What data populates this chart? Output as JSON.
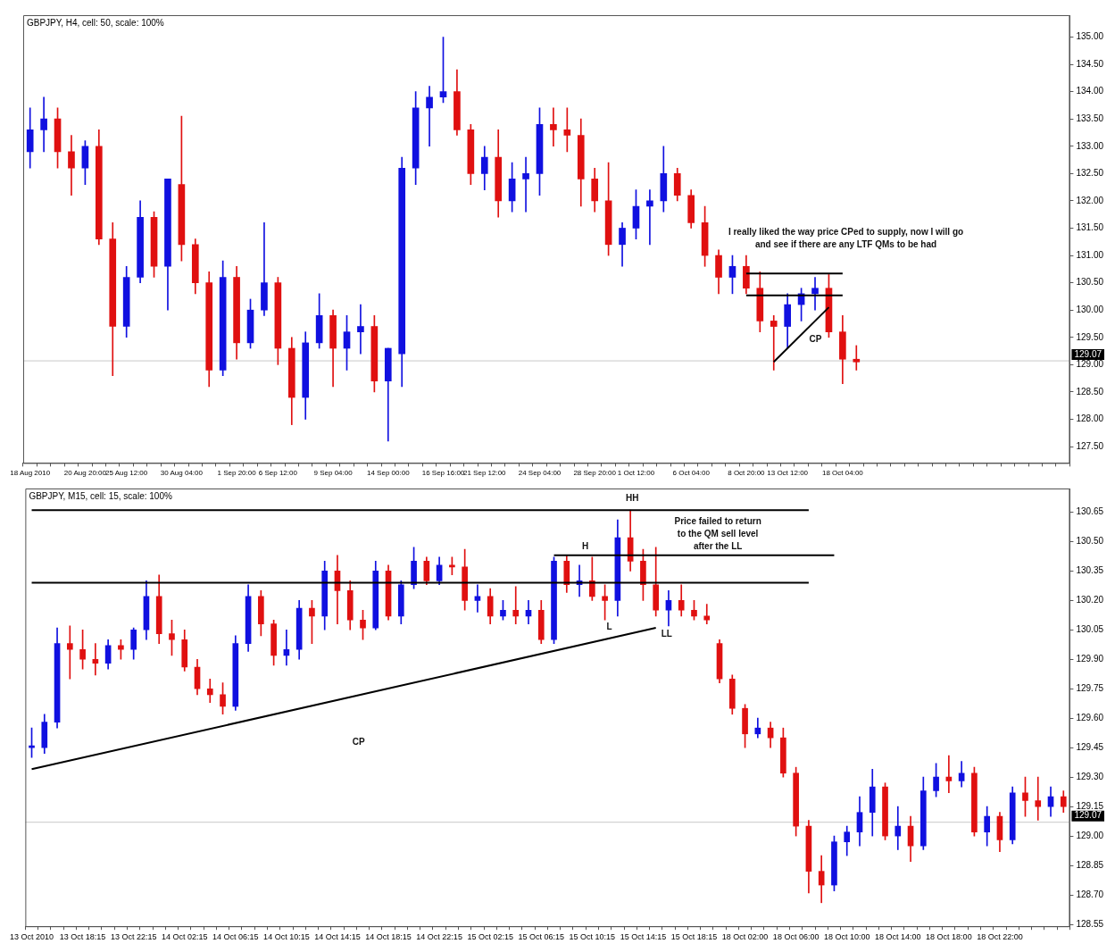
{
  "chart_data": [
    {
      "type": "candlestick",
      "title": "GBPJPY, H4, cell: 50, scale: 100%",
      "categories": [
        "18 Aug 2010",
        null,
        null,
        null,
        "20 Aug 20:00",
        null,
        null,
        "25 Aug 12:00",
        null,
        null,
        null,
        "30 Aug 04:00",
        null,
        null,
        null,
        "1 Sep 20:00",
        null,
        null,
        "6 Sep 12:00",
        null,
        null,
        null,
        "9 Sep 04:00",
        null,
        null,
        null,
        "14 Sep 00:00",
        null,
        null,
        null,
        "16 Sep 16:00",
        null,
        null,
        "21 Sep 12:00",
        null,
        null,
        null,
        "24 Sep 04:00",
        null,
        null,
        null,
        "28 Sep 20:00",
        null,
        null,
        "1 Oct 12:00",
        null,
        null,
        null,
        "6 Oct 04:00",
        null,
        null,
        null,
        "8 Oct 20:00",
        null,
        null,
        "13 Oct 12:00",
        null,
        null,
        null,
        "18 Oct 04:00",
        null,
        null,
        null,
        null,
        null,
        null,
        null,
        null,
        null,
        null,
        null,
        null,
        null,
        null,
        null,
        null
      ],
      "ohlc": [
        [
          132.9,
          133.7,
          132.6,
          133.3
        ],
        [
          133.3,
          133.9,
          132.9,
          133.5
        ],
        [
          133.5,
          133.7,
          132.6,
          132.9
        ],
        [
          132.9,
          133.2,
          132.1,
          132.6
        ],
        [
          132.6,
          133.1,
          132.3,
          133.0
        ],
        [
          133.0,
          133.3,
          131.2,
          131.3
        ],
        [
          131.3,
          131.6,
          128.8,
          129.7
        ],
        [
          129.7,
          130.8,
          129.5,
          130.6
        ],
        [
          130.6,
          132.0,
          130.5,
          131.7
        ],
        [
          131.7,
          131.8,
          130.6,
          130.8
        ],
        [
          130.8,
          132.4,
          130.0,
          132.4
        ],
        [
          132.3,
          133.55,
          130.9,
          131.2
        ],
        [
          131.2,
          131.3,
          130.3,
          130.5
        ],
        [
          130.5,
          130.7,
          128.6,
          128.9
        ],
        [
          128.9,
          130.9,
          128.8,
          130.6
        ],
        [
          130.6,
          130.8,
          129.1,
          129.4
        ],
        [
          129.4,
          130.2,
          129.3,
          130.0
        ],
        [
          130.0,
          131.6,
          129.9,
          130.5
        ],
        [
          130.5,
          130.6,
          129.0,
          129.3
        ],
        [
          129.3,
          129.5,
          127.9,
          128.4
        ],
        [
          128.4,
          129.6,
          128.0,
          129.4
        ],
        [
          129.4,
          130.3,
          129.3,
          129.9
        ],
        [
          129.9,
          130.0,
          128.6,
          129.3
        ],
        [
          129.3,
          129.9,
          128.9,
          129.6
        ],
        [
          129.6,
          130.1,
          129.2,
          129.7
        ],
        [
          129.7,
          129.9,
          128.5,
          128.7
        ],
        [
          128.7,
          129.3,
          127.6,
          129.3
        ],
        [
          129.2,
          132.8,
          128.6,
          132.6
        ],
        [
          132.6,
          134.0,
          132.3,
          133.7
        ],
        [
          133.7,
          134.1,
          133.0,
          133.9
        ],
        [
          133.9,
          135.0,
          133.8,
          134.0
        ],
        [
          134.0,
          134.4,
          133.2,
          133.3
        ],
        [
          133.3,
          133.4,
          132.3,
          132.5
        ],
        [
          132.5,
          133.0,
          132.2,
          132.8
        ],
        [
          132.8,
          133.3,
          131.7,
          132.0
        ],
        [
          132.0,
          132.7,
          131.8,
          132.4
        ],
        [
          132.4,
          132.8,
          131.8,
          132.5
        ],
        [
          132.5,
          133.7,
          132.1,
          133.4
        ],
        [
          133.4,
          133.7,
          133.0,
          133.3
        ],
        [
          133.3,
          133.7,
          132.9,
          133.2
        ],
        [
          133.2,
          133.5,
          131.9,
          132.4
        ],
        [
          132.4,
          132.6,
          131.8,
          132.0
        ],
        [
          132.0,
          132.7,
          131.0,
          131.2
        ],
        [
          131.2,
          131.6,
          130.8,
          131.5
        ],
        [
          131.5,
          132.2,
          131.3,
          131.9
        ],
        [
          131.9,
          132.2,
          131.2,
          132.0
        ],
        [
          132.0,
          133.0,
          131.8,
          132.5
        ],
        [
          132.5,
          132.6,
          132.0,
          132.1
        ],
        [
          132.1,
          132.2,
          131.5,
          131.6
        ],
        [
          131.6,
          131.9,
          130.8,
          131.0
        ],
        [
          131.0,
          131.1,
          130.3,
          130.6
        ],
        [
          130.6,
          131.0,
          130.3,
          130.8
        ],
        [
          130.8,
          131.0,
          130.3,
          130.4
        ],
        [
          130.4,
          130.7,
          129.6,
          129.8
        ],
        [
          129.8,
          129.9,
          128.9,
          129.7
        ],
        [
          129.7,
          130.3,
          129.3,
          130.1
        ],
        [
          130.1,
          130.4,
          129.8,
          130.3
        ],
        [
          130.3,
          130.6,
          130.0,
          130.4
        ],
        [
          130.4,
          130.65,
          129.5,
          129.6
        ],
        [
          129.6,
          129.9,
          128.65,
          129.1
        ],
        [
          129.1,
          129.35,
          128.9,
          129.05
        ],
        null,
        null,
        null,
        null,
        null,
        null,
        null,
        null,
        null,
        null,
        null,
        null,
        null,
        null,
        null
      ],
      "colors": [
        "#1010e0",
        "#1010e0",
        "#e01010",
        "#e01010",
        "#1010e0",
        "#e01010",
        "#e01010",
        "#1010e0",
        "#1010e0",
        "#e01010",
        "#1010e0",
        "#e01010",
        "#e01010",
        "#e01010",
        "#1010e0",
        "#e01010",
        "#1010e0",
        "#1010e0",
        "#e01010",
        "#e01010",
        "#1010e0",
        "#1010e0",
        "#e01010",
        "#1010e0",
        "#1010e0",
        "#e01010",
        "#1010e0",
        "#1010e0",
        "#1010e0",
        "#1010e0",
        "#1010e0",
        "#e01010",
        "#e01010",
        "#1010e0",
        "#e01010",
        "#1010e0",
        "#1010e0",
        "#1010e0",
        "#e01010",
        "#e01010",
        "#e01010",
        "#e01010",
        "#e01010",
        "#1010e0",
        "#1010e0",
        "#1010e0",
        "#1010e0",
        "#e01010",
        "#e01010",
        "#e01010",
        "#e01010",
        "#1010e0",
        "#e01010",
        "#e01010",
        "#e01010",
        "#1010e0",
        "#1010e0",
        "#1010e0",
        "#e01010",
        "#e01010",
        "#e01010",
        null,
        null,
        null,
        null,
        null,
        null,
        null,
        null,
        null,
        null,
        null,
        null,
        null,
        null,
        null
      ],
      "series": [
        {
          "type": "line",
          "color": "#000000",
          "values": [
            null,
            null,
            null,
            null,
            null,
            null,
            null,
            null,
            null,
            null,
            null,
            null,
            null,
            null,
            null,
            null,
            null,
            null,
            null,
            null,
            null,
            null,
            null,
            null,
            null,
            null,
            null,
            null,
            null,
            null,
            null,
            null,
            null,
            null,
            null,
            null,
            null,
            null,
            null,
            null,
            null,
            null,
            null,
            null,
            null,
            null,
            null,
            null,
            null,
            null,
            null,
            null,
            130.67,
            null,
            null,
            null,
            null,
            null,
            null,
            130.67,
            null,
            null,
            null,
            null,
            null,
            null,
            null,
            null,
            null,
            null,
            null,
            null,
            null,
            null,
            null,
            null
          ]
        },
        {
          "type": "line",
          "color": "#000000",
          "values": [
            null,
            null,
            null,
            null,
            null,
            null,
            null,
            null,
            null,
            null,
            null,
            null,
            null,
            null,
            null,
            null,
            null,
            null,
            null,
            null,
            null,
            null,
            null,
            null,
            null,
            null,
            null,
            null,
            null,
            null,
            null,
            null,
            null,
            null,
            null,
            null,
            null,
            null,
            null,
            null,
            null,
            null,
            null,
            null,
            null,
            null,
            null,
            null,
            null,
            null,
            null,
            null,
            130.27,
            null,
            null,
            null,
            null,
            null,
            null,
            130.27,
            null,
            null,
            null,
            null,
            null,
            null,
            null,
            null,
            null,
            null,
            null,
            null,
            null,
            null,
            null,
            null
          ]
        },
        {
          "type": "line",
          "color": "#000000",
          "values": [
            null,
            null,
            null,
            null,
            null,
            null,
            null,
            null,
            null,
            null,
            null,
            null,
            null,
            null,
            null,
            null,
            null,
            null,
            null,
            null,
            null,
            null,
            null,
            null,
            null,
            null,
            null,
            null,
            null,
            null,
            null,
            null,
            null,
            null,
            null,
            null,
            null,
            null,
            null,
            null,
            null,
            null,
            null,
            null,
            null,
            null,
            null,
            null,
            null,
            null,
            null,
            null,
            null,
            null,
            129.05,
            null,
            null,
            null,
            130.05,
            null,
            null,
            null,
            null,
            null,
            null,
            null,
            null,
            null,
            null,
            null,
            null,
            null,
            null,
            null,
            null,
            null
          ]
        }
      ],
      "ref_lines": [
        {
          "axis": "y",
          "value": 129.07,
          "label": "129.07",
          "color": "#c8c8c8"
        }
      ],
      "annotations": [
        "I really liked the way price CPed to supply, now I will go\nand see if there are any LTF QMs to be had",
        "CP"
      ],
      "ylim": [
        127.2,
        135.4
      ],
      "yticks": [
        {
          "value": 127.5,
          "label": "127.50"
        },
        {
          "value": 128,
          "label": "128.00"
        },
        {
          "value": 128.5,
          "label": "128.50"
        },
        {
          "value": 129,
          "label": "129.00"
        },
        {
          "value": 129.5,
          "label": "129.50"
        },
        {
          "value": 130,
          "label": "130.00"
        },
        {
          "value": 130.5,
          "label": "130.50"
        },
        {
          "value": 131,
          "label": "131.00"
        },
        {
          "value": 131.5,
          "label": "131.50"
        },
        {
          "value": 132,
          "label": "132.00"
        },
        {
          "value": 132.5,
          "label": "132.50"
        },
        {
          "value": 133,
          "label": "133.00"
        },
        {
          "value": 133.5,
          "label": "133.50"
        },
        {
          "value": 134,
          "label": "134.00"
        },
        {
          "value": 134.5,
          "label": "134.50"
        },
        {
          "value": 135,
          "label": "135.00"
        }
      ],
      "grid": false,
      "legend": false
    },
    {
      "type": "candlestick",
      "title": "GBPJPY, M15, cell: 15, scale: 100%",
      "categories": [
        "13 Oct 2010",
        null,
        null,
        null,
        "13 Oct 18:15",
        null,
        null,
        null,
        "13 Oct 22:15",
        null,
        null,
        null,
        "14 Oct 02:15",
        null,
        null,
        null,
        "14 Oct 06:15",
        null,
        null,
        null,
        "14 Oct 10:15",
        null,
        null,
        null,
        "14 Oct 14:15",
        null,
        null,
        null,
        "14 Oct 18:15",
        null,
        null,
        null,
        "14 Oct 22:15",
        null,
        null,
        null,
        "15 Oct 02:15",
        null,
        null,
        null,
        "15 Oct 06:15",
        null,
        null,
        null,
        "15 Oct 10:15",
        null,
        null,
        null,
        "15 Oct 14:15",
        null,
        null,
        null,
        "15 Oct 18:15",
        null,
        null,
        null,
        "18 Oct 02:00",
        null,
        null,
        null,
        "18 Oct 06:00",
        null,
        null,
        null,
        "18 Oct 10:00",
        null,
        null,
        null,
        "18 Oct 14:00",
        null,
        null,
        null,
        "18 Oct 18:00",
        null,
        null,
        null,
        "18 Oct 22:00",
        null,
        null,
        null,
        null,
        null
      ],
      "ohlc": [
        [
          129.45,
          129.55,
          129.4,
          129.46
        ],
        [
          129.45,
          129.62,
          129.42,
          129.58
        ],
        [
          129.58,
          130.06,
          129.55,
          129.98
        ],
        [
          129.98,
          130.07,
          129.8,
          129.95
        ],
        [
          129.95,
          130.05,
          129.85,
          129.9
        ],
        [
          129.9,
          129.98,
          129.82,
          129.88
        ],
        [
          129.88,
          130.0,
          129.85,
          129.97
        ],
        [
          129.97,
          130.0,
          129.9,
          129.95
        ],
        [
          129.95,
          130.06,
          129.9,
          130.05
        ],
        [
          130.05,
          130.3,
          130.0,
          130.22
        ],
        [
          130.22,
          130.33,
          129.98,
          130.03
        ],
        [
          130.03,
          130.1,
          129.92,
          130.0
        ],
        [
          130.0,
          130.05,
          129.84,
          129.86
        ],
        [
          129.86,
          129.9,
          129.72,
          129.75
        ],
        [
          129.75,
          129.8,
          129.68,
          129.72
        ],
        [
          129.72,
          129.78,
          129.62,
          129.66
        ],
        [
          129.66,
          130.02,
          129.64,
          129.98
        ],
        [
          129.98,
          130.28,
          129.94,
          130.22
        ],
        [
          130.22,
          130.25,
          130.02,
          130.08
        ],
        [
          130.08,
          130.1,
          129.87,
          129.92
        ],
        [
          129.92,
          130.05,
          129.87,
          129.95
        ],
        [
          129.95,
          130.2,
          129.9,
          130.16
        ],
        [
          130.16,
          130.2,
          129.98,
          130.12
        ],
        [
          130.12,
          130.4,
          130.05,
          130.35
        ],
        [
          130.35,
          130.43,
          130.08,
          130.25
        ],
        [
          130.25,
          130.3,
          130.05,
          130.1
        ],
        [
          130.1,
          130.15,
          130.0,
          130.06
        ],
        [
          130.06,
          130.4,
          130.05,
          130.35
        ],
        [
          130.35,
          130.38,
          130.1,
          130.12
        ],
        [
          130.12,
          130.3,
          130.08,
          130.28
        ],
        [
          130.28,
          130.47,
          130.26,
          130.4
        ],
        [
          130.4,
          130.42,
          130.28,
          130.3
        ],
        [
          130.3,
          130.42,
          130.28,
          130.38
        ],
        [
          130.38,
          130.42,
          130.33,
          130.37
        ],
        [
          130.37,
          130.46,
          130.15,
          130.2
        ],
        [
          130.2,
          130.28,
          130.14,
          130.22
        ],
        [
          130.22,
          130.26,
          130.08,
          130.12
        ],
        [
          130.12,
          130.2,
          130.1,
          130.15
        ],
        [
          130.15,
          130.27,
          130.08,
          130.12
        ],
        [
          130.12,
          130.2,
          130.08,
          130.15
        ],
        [
          130.15,
          130.2,
          129.98,
          130.0
        ],
        [
          130.0,
          130.42,
          129.98,
          130.4
        ],
        [
          130.4,
          130.43,
          130.24,
          130.28
        ],
        [
          130.28,
          130.38,
          130.22,
          130.3
        ],
        [
          130.3,
          130.42,
          130.2,
          130.22
        ],
        [
          130.22,
          130.28,
          130.1,
          130.2
        ],
        [
          130.2,
          130.61,
          130.12,
          130.52
        ],
        [
          130.52,
          130.66,
          130.35,
          130.4
        ],
        [
          130.4,
          130.46,
          130.2,
          130.28
        ],
        [
          130.28,
          130.47,
          130.12,
          130.15
        ],
        [
          130.15,
          130.25,
          130.07,
          130.2
        ],
        [
          130.2,
          130.28,
          130.12,
          130.15
        ],
        [
          130.15,
          130.2,
          130.1,
          130.12
        ],
        [
          130.12,
          130.18,
          130.08,
          130.1
        ],
        [
          129.98,
          130.0,
          129.78,
          129.8
        ],
        [
          129.8,
          129.82,
          129.62,
          129.65
        ],
        [
          129.65,
          129.67,
          129.45,
          129.52
        ],
        [
          129.52,
          129.6,
          129.5,
          129.55
        ],
        [
          129.55,
          129.58,
          129.45,
          129.5
        ],
        [
          129.5,
          129.55,
          129.3,
          129.32
        ],
        [
          129.32,
          129.35,
          129.0,
          129.05
        ],
        [
          129.05,
          129.08,
          128.71,
          128.82
        ],
        [
          128.82,
          128.9,
          128.66,
          128.75
        ],
        [
          128.75,
          129.0,
          128.72,
          128.97
        ],
        [
          128.97,
          129.05,
          128.9,
          129.02
        ],
        [
          129.02,
          129.2,
          128.95,
          129.12
        ],
        [
          129.12,
          129.34,
          129.0,
          129.25
        ],
        [
          129.25,
          129.27,
          128.98,
          129.0
        ],
        [
          129.0,
          129.15,
          128.93,
          129.05
        ],
        [
          129.05,
          129.1,
          128.87,
          128.95
        ],
        [
          128.95,
          129.3,
          128.93,
          129.23
        ],
        [
          129.23,
          129.37,
          129.2,
          129.3
        ],
        [
          129.3,
          129.41,
          129.22,
          129.28
        ],
        [
          129.28,
          129.38,
          129.25,
          129.32
        ],
        [
          129.32,
          129.35,
          129.0,
          129.02
        ],
        [
          129.02,
          129.15,
          128.95,
          129.1
        ],
        [
          129.1,
          129.12,
          128.92,
          128.98
        ],
        [
          128.98,
          129.25,
          128.96,
          129.22
        ],
        [
          129.22,
          129.3,
          129.1,
          129.18
        ],
        [
          129.18,
          129.3,
          129.08,
          129.15
        ],
        [
          129.15,
          129.25,
          129.1,
          129.2
        ],
        [
          129.2,
          129.23,
          129.12,
          129.15
        ]
      ],
      "colors": [
        "#1010e0",
        "#1010e0",
        "#1010e0",
        "#e01010",
        "#e01010",
        "#e01010",
        "#1010e0",
        "#e01010",
        "#1010e0",
        "#1010e0",
        "#e01010",
        "#e01010",
        "#e01010",
        "#e01010",
        "#e01010",
        "#e01010",
        "#1010e0",
        "#1010e0",
        "#e01010",
        "#e01010",
        "#1010e0",
        "#1010e0",
        "#e01010",
        "#1010e0",
        "#e01010",
        "#e01010",
        "#e01010",
        "#1010e0",
        "#e01010",
        "#1010e0",
        "#1010e0",
        "#e01010",
        "#1010e0",
        "#e01010",
        "#e01010",
        "#1010e0",
        "#e01010",
        "#1010e0",
        "#e01010",
        "#1010e0",
        "#e01010",
        "#1010e0",
        "#e01010",
        "#1010e0",
        "#e01010",
        "#e01010",
        "#1010e0",
        "#e01010",
        "#e01010",
        "#e01010",
        "#1010e0",
        "#e01010",
        "#e01010",
        "#e01010",
        "#e01010",
        "#e01010",
        "#e01010",
        "#1010e0",
        "#e01010",
        "#e01010",
        "#e01010",
        "#e01010",
        "#e01010",
        "#1010e0",
        "#1010e0",
        "#1010e0",
        "#1010e0",
        "#e01010",
        "#1010e0",
        "#e01010",
        "#1010e0",
        "#1010e0",
        "#e01010",
        "#1010e0",
        "#e01010",
        "#1010e0",
        "#e01010",
        "#1010e0",
        "#e01010",
        "#e01010",
        "#1010e0",
        "#e01010"
      ],
      "series": [
        {
          "type": "line",
          "color": "#000000",
          "values": [
            130.66,
            null,
            null,
            null,
            null,
            null,
            null,
            null,
            null,
            null,
            null,
            null,
            null,
            null,
            null,
            null,
            null,
            null,
            null,
            null,
            null,
            null,
            null,
            null,
            null,
            null,
            null,
            null,
            null,
            null,
            null,
            null,
            null,
            null,
            null,
            null,
            null,
            null,
            null,
            null,
            null,
            null,
            null,
            null,
            null,
            null,
            null,
            null,
            null,
            null,
            null,
            null,
            null,
            null,
            null,
            null,
            null,
            null,
            null,
            null,
            null,
            130.66,
            null,
            null,
            null,
            null,
            null,
            null,
            null,
            null,
            null,
            null,
            null,
            null,
            null,
            null,
            null,
            null,
            null,
            null,
            null,
            null
          ]
        },
        {
          "type": "line",
          "color": "#000000",
          "values": [
            130.29,
            null,
            null,
            null,
            null,
            null,
            null,
            null,
            null,
            null,
            null,
            null,
            null,
            null,
            null,
            null,
            null,
            null,
            null,
            null,
            null,
            null,
            null,
            null,
            null,
            null,
            null,
            null,
            null,
            null,
            null,
            null,
            null,
            null,
            null,
            null,
            null,
            null,
            null,
            null,
            null,
            null,
            null,
            null,
            null,
            null,
            null,
            null,
            null,
            null,
            null,
            null,
            null,
            null,
            null,
            null,
            null,
            null,
            null,
            null,
            null,
            130.29,
            null,
            null,
            null,
            null,
            null,
            null,
            null,
            null,
            null,
            null,
            null,
            null,
            null,
            null,
            null,
            null,
            null,
            null,
            null,
            null
          ]
        },
        {
          "type": "line",
          "color": "#000000",
          "values": [
            null,
            null,
            null,
            null,
            null,
            null,
            null,
            null,
            null,
            null,
            null,
            null,
            null,
            null,
            null,
            null,
            null,
            null,
            null,
            null,
            null,
            null,
            null,
            null,
            null,
            null,
            null,
            null,
            null,
            null,
            null,
            null,
            null,
            null,
            null,
            null,
            null,
            null,
            null,
            null,
            null,
            130.43,
            null,
            null,
            null,
            null,
            null,
            null,
            null,
            null,
            null,
            null,
            null,
            null,
            null,
            null,
            null,
            null,
            null,
            null,
            null,
            null,
            null,
            130.43,
            null,
            null,
            null,
            null,
            null,
            null,
            null,
            null,
            null,
            null,
            null,
            null,
            null,
            null,
            null,
            null,
            null,
            null
          ]
        },
        {
          "type": "line",
          "color": "#000000",
          "values": [
            129.34,
            null,
            null,
            null,
            null,
            null,
            null,
            null,
            null,
            null,
            null,
            null,
            null,
            null,
            null,
            null,
            null,
            null,
            null,
            null,
            null,
            null,
            null,
            null,
            null,
            null,
            null,
            null,
            null,
            null,
            null,
            null,
            null,
            null,
            null,
            null,
            null,
            null,
            null,
            null,
            null,
            null,
            null,
            null,
            null,
            null,
            null,
            null,
            null,
            130.06,
            null,
            null,
            null,
            null,
            null,
            null,
            null,
            null,
            null,
            null,
            null,
            null,
            null,
            null,
            null,
            null,
            null,
            null,
            null,
            null,
            null,
            null,
            null,
            null,
            null,
            null,
            null,
            null,
            null,
            null,
            null,
            null
          ]
        }
      ],
      "ref_lines": [
        {
          "axis": "y",
          "value": 129.07,
          "label": "129.07",
          "color": "#c8c8c8"
        }
      ],
      "annotations": [
        "HH",
        "H",
        "L",
        "LL",
        "CP",
        "Price failed to return\nto the QM sell level\nafter the LL"
      ],
      "ylim": [
        128.54,
        130.77
      ],
      "yticks": [
        128.55,
        {
          "value": 128.7,
          "label": "128.70"
        },
        128.85,
        {
          "value": 129,
          "label": "129.00"
        },
        129.15,
        {
          "value": 129.3,
          "label": "129.30"
        },
        129.45,
        {
          "value": 129.6,
          "label": "129.60"
        },
        129.75,
        {
          "value": 129.9,
          "label": "129.90"
        },
        130.05,
        {
          "value": 130.2,
          "label": "130.20"
        },
        130.35,
        {
          "value": 130.5,
          "label": "130.50"
        },
        130.65
      ],
      "grid": false,
      "legend": false
    }
  ]
}
